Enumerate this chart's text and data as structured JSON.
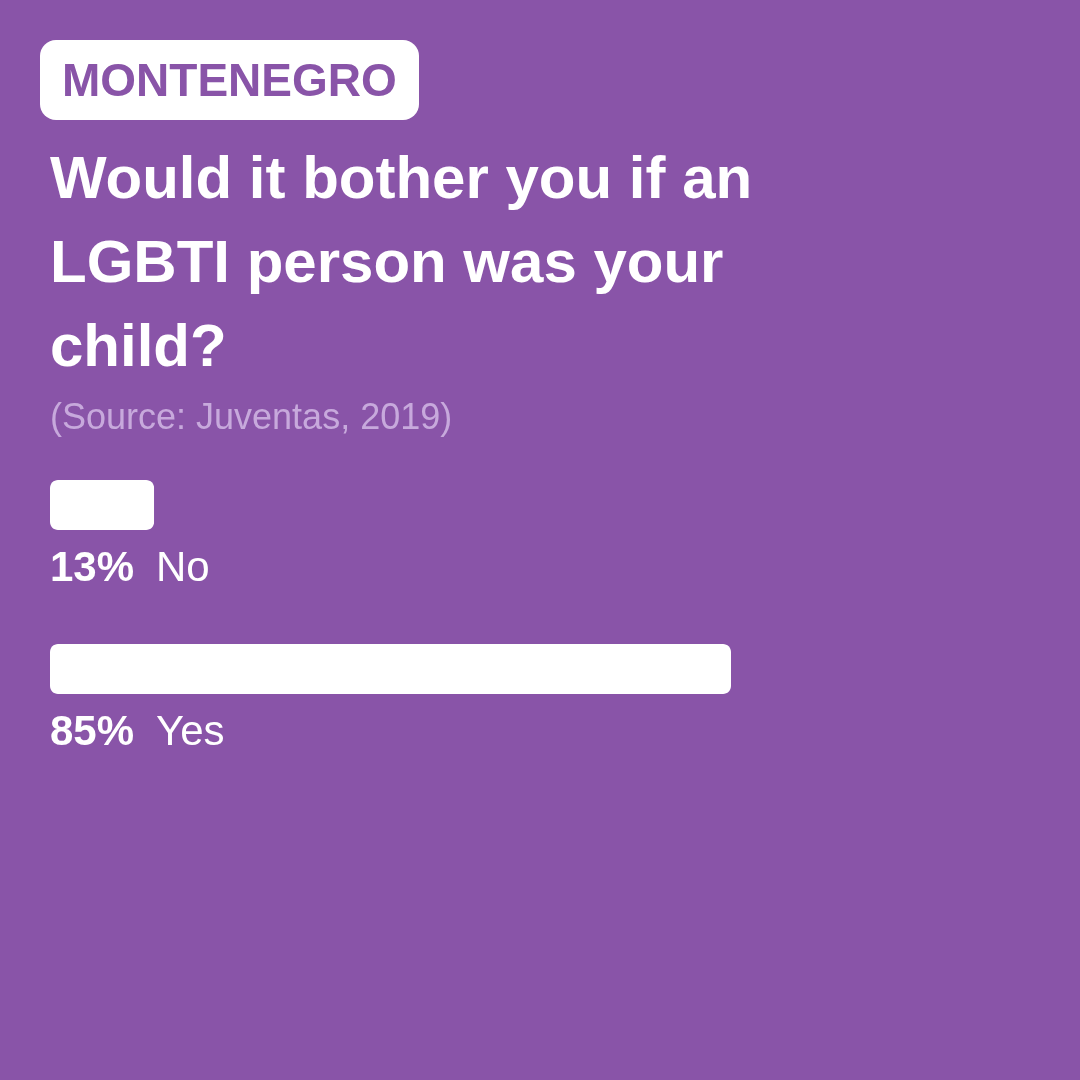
{
  "chart_data": {
    "type": "bar",
    "orientation": "horizontal",
    "subtitle": "MONTENEGRO",
    "title": "Would it bother you if an LGBTI person was your child?",
    "annotations": [
      "(Source: Juventas, 2019)"
    ],
    "categories": [
      "No",
      "Yes"
    ],
    "values": [
      13,
      85
    ],
    "value_labels": [
      "13%",
      "85%"
    ],
    "color": "#ffffff"
  }
}
